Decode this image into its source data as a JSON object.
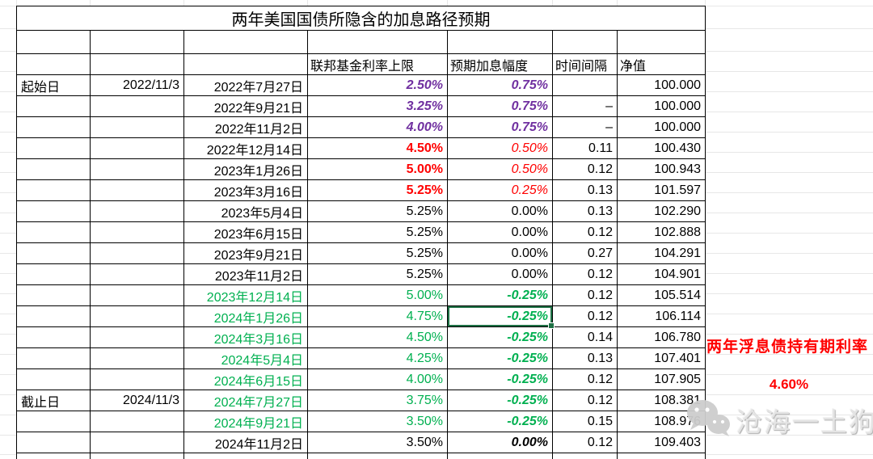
{
  "title": "两年美国国债所隐含的加息路径预期",
  "table": {
    "headers": [
      "联邦基金利率上限",
      "预期加息幅度",
      "时间间隔",
      "净值"
    ],
    "rows": [
      {
        "period_label": "起始日",
        "period_date": "2022/11/3",
        "date": "2022年7月27日",
        "rate": "2.50%",
        "hike": "0.75%",
        "interval": "",
        "nav": "100.000",
        "variant": "purple",
        "selected": false
      },
      {
        "period_label": "",
        "period_date": "",
        "date": "2022年9月21日",
        "rate": "3.25%",
        "hike": "0.75%",
        "interval": "–",
        "nav": "100.000",
        "variant": "purple",
        "selected": false
      },
      {
        "period_label": "",
        "period_date": "",
        "date": "2022年11月2日",
        "rate": "4.00%",
        "hike": "0.75%",
        "interval": "–",
        "nav": "100.000",
        "variant": "purple",
        "selected": false
      },
      {
        "period_label": "",
        "period_date": "",
        "date": "2022年12月14日",
        "rate": "4.50%",
        "hike": "0.50%",
        "interval": "0.11",
        "nav": "100.430",
        "variant": "red",
        "selected": false
      },
      {
        "period_label": "",
        "period_date": "",
        "date": "2023年1月26日",
        "rate": "5.00%",
        "hike": "0.50%",
        "interval": "0.12",
        "nav": "100.943",
        "variant": "red",
        "selected": false
      },
      {
        "period_label": "",
        "period_date": "",
        "date": "2023年3月16日",
        "rate": "5.25%",
        "hike": "0.25%",
        "interval": "0.13",
        "nav": "101.597",
        "variant": "red",
        "selected": false
      },
      {
        "period_label": "",
        "period_date": "",
        "date": "2023年5月4日",
        "rate": "5.25%",
        "hike": "0.00%",
        "interval": "0.13",
        "nav": "102.290",
        "variant": "black",
        "selected": false
      },
      {
        "period_label": "",
        "period_date": "",
        "date": "2023年6月15日",
        "rate": "5.25%",
        "hike": "0.00%",
        "interval": "0.12",
        "nav": "102.888",
        "variant": "black",
        "selected": false
      },
      {
        "period_label": "",
        "period_date": "",
        "date": "2023年9月21日",
        "rate": "5.25%",
        "hike": "0.00%",
        "interval": "0.27",
        "nav": "104.291",
        "variant": "black",
        "selected": false
      },
      {
        "period_label": "",
        "period_date": "",
        "date": "2023年11月2日",
        "rate": "5.25%",
        "hike": "0.00%",
        "interval": "0.12",
        "nav": "104.901",
        "variant": "black",
        "selected": false
      },
      {
        "period_label": "",
        "period_date": "",
        "date": "2023年12月14日",
        "rate": "5.00%",
        "hike": "-0.25%",
        "interval": "0.12",
        "nav": "105.514",
        "variant": "green",
        "selected": false
      },
      {
        "period_label": "",
        "period_date": "",
        "date": "2024年1月26日",
        "rate": "4.75%",
        "hike": "-0.25%",
        "interval": "0.12",
        "nav": "106.114",
        "variant": "green",
        "selected": true
      },
      {
        "period_label": "",
        "period_date": "",
        "date": "2024年3月16日",
        "rate": "4.50%",
        "hike": "-0.25%",
        "interval": "0.14",
        "nav": "106.780",
        "variant": "green",
        "selected": false
      },
      {
        "period_label": "",
        "period_date": "",
        "date": "2024年5月4日",
        "rate": "4.25%",
        "hike": "-0.25%",
        "interval": "0.13",
        "nav": "107.401",
        "variant": "green",
        "selected": false
      },
      {
        "period_label": "",
        "period_date": "",
        "date": "2024年6月15日",
        "rate": "4.00%",
        "hike": "-0.25%",
        "interval": "0.12",
        "nav": "107.905",
        "variant": "green",
        "selected": false
      },
      {
        "period_label": "截止日",
        "period_date": "2024/11/3",
        "date": "2024年7月27日",
        "rate": "3.75%",
        "hike": "-0.25%",
        "interval": "0.12",
        "nav": "108.381",
        "variant": "green",
        "selected": false
      },
      {
        "period_label": "",
        "period_date": "",
        "date": "2024年9月21日",
        "rate": "3.50%",
        "hike": "-0.25%",
        "interval": "0.15",
        "nav": "108.976",
        "variant": "green",
        "selected": false
      },
      {
        "period_label": "",
        "period_date": "",
        "date": "2024年11月2日",
        "rate": "3.50%",
        "hike": "0.00%",
        "interval": "0.12",
        "nav": "109.403",
        "variant": "final",
        "selected": false
      }
    ]
  },
  "side": {
    "caption": "两年浮息债持有期利率",
    "value": "4.60%"
  },
  "watermark": {
    "icon": "wechat-icon",
    "text": "沧海一土狗"
  },
  "colors": {
    "hike_purple": "#7030A0",
    "hike_red": "#FF0000",
    "cut_green": "#00B050",
    "selection_border": "#1E7145",
    "annotation_red": "#FF0000"
  }
}
